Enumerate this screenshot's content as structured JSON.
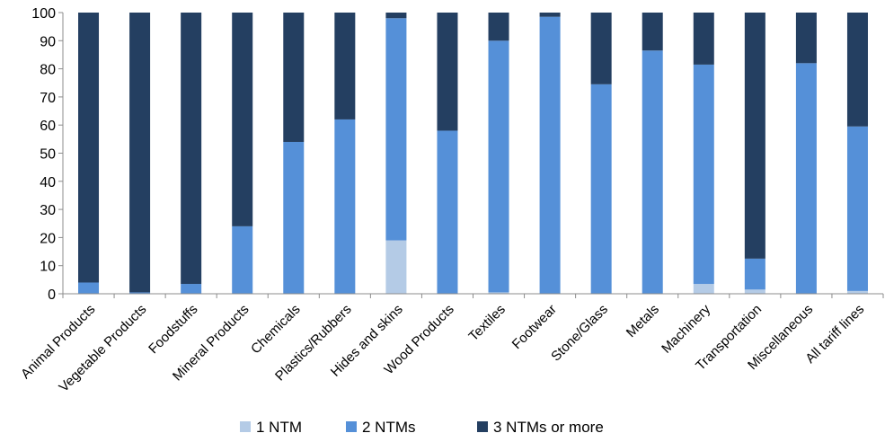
{
  "chart_data": {
    "type": "bar",
    "stacked": true,
    "categories": [
      "Animal Products",
      "Vegetable Products",
      "Foodstuffs",
      "Mineral Products",
      "Chemicals",
      "Plastics/Rubbers",
      "Hides and skins",
      "Wood Products",
      "Textiles",
      "Footwear",
      "Stone/Glass",
      "Metals",
      "Machinery",
      "Transportation",
      "Miscellaneous",
      "All tariff lines"
    ],
    "series": [
      {
        "name": "1 NTM",
        "color": "#b4cbe6",
        "values": [
          0,
          0,
          0,
          0,
          0,
          0,
          19,
          0,
          0.5,
          0,
          0,
          0,
          3.5,
          1.5,
          0,
          1
        ]
      },
      {
        "name": "2 NTMs",
        "color": "#5590d8",
        "values": [
          4,
          0.5,
          3.5,
          24,
          54,
          62,
          79,
          58,
          89.5,
          98.5,
          74.5,
          86.5,
          78,
          11,
          82,
          58.5
        ]
      },
      {
        "name": "3 NTMs or more",
        "color": "#243f61",
        "values": [
          96,
          99.5,
          96.5,
          76,
          46,
          38,
          2,
          42,
          10,
          1.5,
          25.5,
          13.5,
          18.5,
          87.5,
          18,
          40.5
        ]
      }
    ],
    "ylim": [
      0,
      100
    ],
    "yticks": [
      "0",
      "10",
      "20",
      "30",
      "40",
      "50",
      "60",
      "70",
      "80",
      "90",
      "100"
    ],
    "grid": false,
    "legend_position": "bottom"
  }
}
